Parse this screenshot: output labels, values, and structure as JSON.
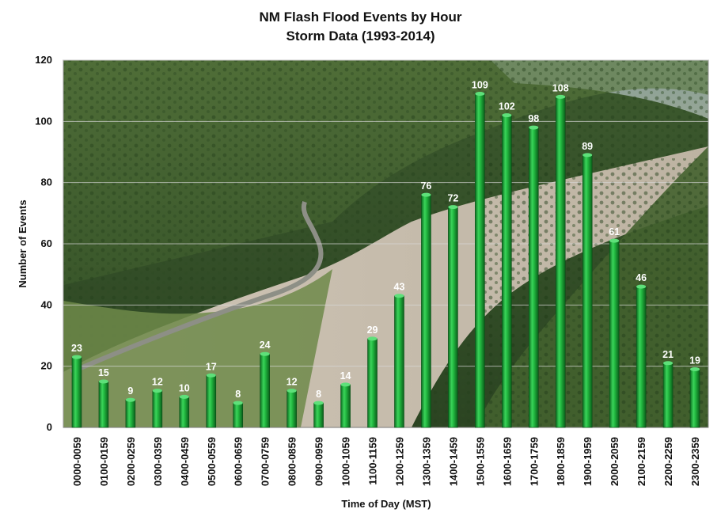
{
  "chart_data": {
    "type": "bar",
    "title": "NM Flash Flood Events by Hour",
    "subtitle": "Storm Data (1993-2014)",
    "xlabel": "Time of Day (MST)",
    "ylabel": "Number of Events",
    "ylim": [
      0,
      120
    ],
    "yticks": [
      0,
      20,
      40,
      60,
      80,
      100,
      120
    ],
    "grid": true,
    "legend": "none",
    "background": "landscape photograph of a forested valley with a dry wash and winding road",
    "bar_color": "#1aa83a",
    "categories": [
      "0000-0059",
      "0100-0159",
      "0200-0259",
      "0300-0359",
      "0400-0459",
      "0500-0559",
      "0600-0659",
      "0700-0759",
      "0800-0859",
      "0900-0959",
      "1000-1059",
      "1100-1159",
      "1200-1259",
      "1300-1359",
      "1400-1459",
      "1500-1559",
      "1600-1659",
      "1700-1759",
      "1800-1859",
      "1900-1959",
      "2000-2059",
      "2100-2159",
      "2200-2259",
      "2300-2359"
    ],
    "values": [
      23,
      15,
      9,
      12,
      10,
      17,
      8,
      24,
      12,
      8,
      14,
      29,
      43,
      76,
      72,
      109,
      102,
      98,
      108,
      89,
      61,
      46,
      21,
      19
    ]
  }
}
